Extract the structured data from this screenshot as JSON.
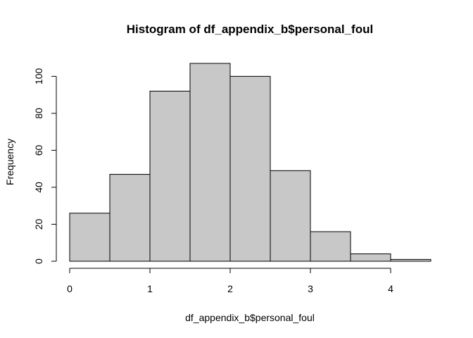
{
  "chart_data": {
    "type": "bar",
    "title": "Histogram of df_appendix_b$personal_foul",
    "xlabel": "df_appendix_b$personal_foul",
    "ylabel": "Frequency",
    "bins": [
      {
        "x0": 0.0,
        "x1": 0.5,
        "value": 26
      },
      {
        "x0": 0.5,
        "x1": 1.0,
        "value": 47
      },
      {
        "x0": 1.0,
        "x1": 1.5,
        "value": 92
      },
      {
        "x0": 1.5,
        "x1": 2.0,
        "value": 107
      },
      {
        "x0": 2.0,
        "x1": 2.5,
        "value": 100
      },
      {
        "x0": 2.5,
        "x1": 3.0,
        "value": 49
      },
      {
        "x0": 3.0,
        "x1": 3.5,
        "value": 16
      },
      {
        "x0": 3.5,
        "x1": 4.0,
        "value": 4
      },
      {
        "x0": 4.0,
        "x1": 4.5,
        "value": 1
      }
    ],
    "xticks": [
      0,
      1,
      2,
      3,
      4
    ],
    "yticks": [
      0,
      20,
      40,
      60,
      80,
      100
    ],
    "xlim": [
      0,
      4.5
    ],
    "ylim": [
      0,
      107
    ],
    "bar_fill": "#c8c8c8",
    "bar_stroke": "#000000",
    "grid": false
  }
}
